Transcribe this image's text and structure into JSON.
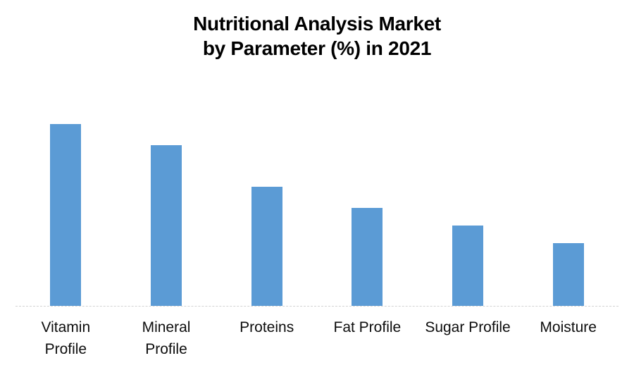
{
  "chart_data": {
    "type": "bar",
    "title": "Nutritional Analysis Market by Parameter (%) in 2021",
    "title_lines": [
      "Nutritional Analysis Market",
      "by Parameter (%) in 2021"
    ],
    "categories": [
      "Vitamin Profile",
      "Mineral Profile",
      "Proteins",
      "Fat Profile",
      "Sugar Profile",
      "Moisture"
    ],
    "category_label_lines": [
      [
        "Vitamin",
        "Profile"
      ],
      [
        "Mineral",
        "Profile"
      ],
      [
        "Proteins"
      ],
      [
        "Fat Profile"
      ],
      [
        "Sugar Profile"
      ],
      [
        "Moisture"
      ]
    ],
    "values": [
      26,
      23,
      17,
      14,
      11.5,
      9
    ],
    "unit": "%",
    "xlabel": "",
    "ylabel": "",
    "ylim": [
      0,
      30
    ],
    "grid": false,
    "legend": false,
    "y_axis_visible": false,
    "bar_color": "#5B9BD5",
    "axis_line_color": "#D4D4D4",
    "title_color": "#000000",
    "label_color": "#0D0D0D",
    "background_color": "#FFFFFF"
  }
}
